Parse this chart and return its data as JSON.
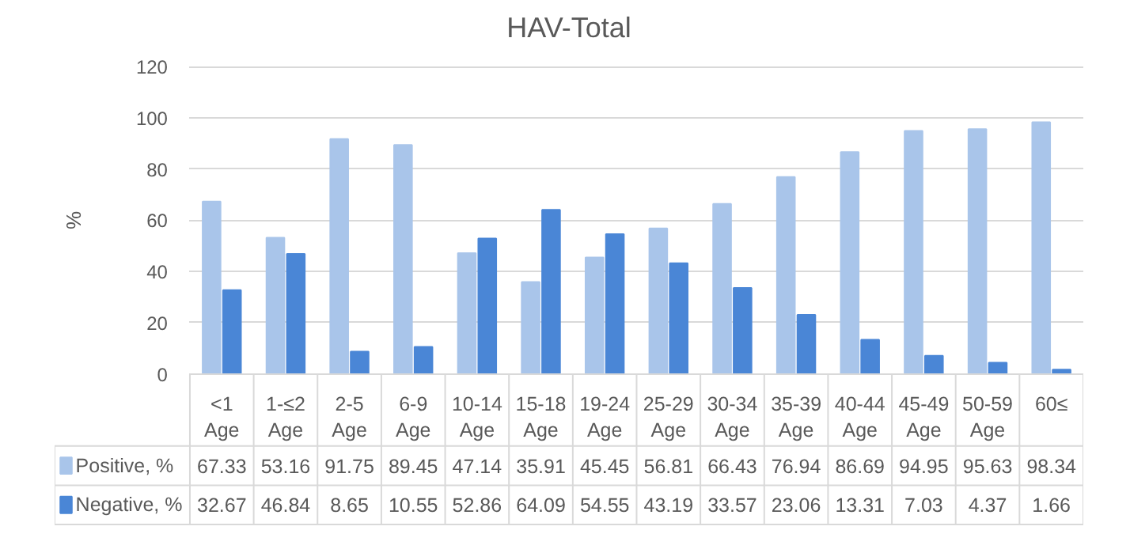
{
  "chart_data": {
    "type": "bar",
    "title": "HAV-Total",
    "ylabel": "%",
    "categories": [
      "<1 Age",
      "1-≤2 Age",
      "2-5 Age",
      "6-9 Age",
      "10-14 Age",
      "15-18 Age",
      "19-24 Age",
      "25-29 Age",
      "30-34 Age",
      "35-39 Age",
      "40-44 Age",
      "45-49 Age",
      "50-59 Age",
      "60≤"
    ],
    "series": [
      {
        "name": "Positive, %",
        "color": "#a9c5ea",
        "values": [
          67.33,
          53.16,
          91.75,
          89.45,
          47.14,
          35.91,
          45.45,
          56.81,
          66.43,
          76.94,
          86.69,
          94.95,
          95.63,
          98.34
        ]
      },
      {
        "name": "Negative, %",
        "color": "#4a86d6",
        "values": [
          32.67,
          46.84,
          8.65,
          10.55,
          52.86,
          64.09,
          54.55,
          43.19,
          33.57,
          23.06,
          13.31,
          7.03,
          4.37,
          1.66
        ]
      }
    ],
    "ylim": [
      0,
      120
    ],
    "yticks": [
      0,
      20,
      40,
      60,
      80,
      100,
      120
    ],
    "grid": "y",
    "legend": "bottom",
    "data_labels": true
  }
}
